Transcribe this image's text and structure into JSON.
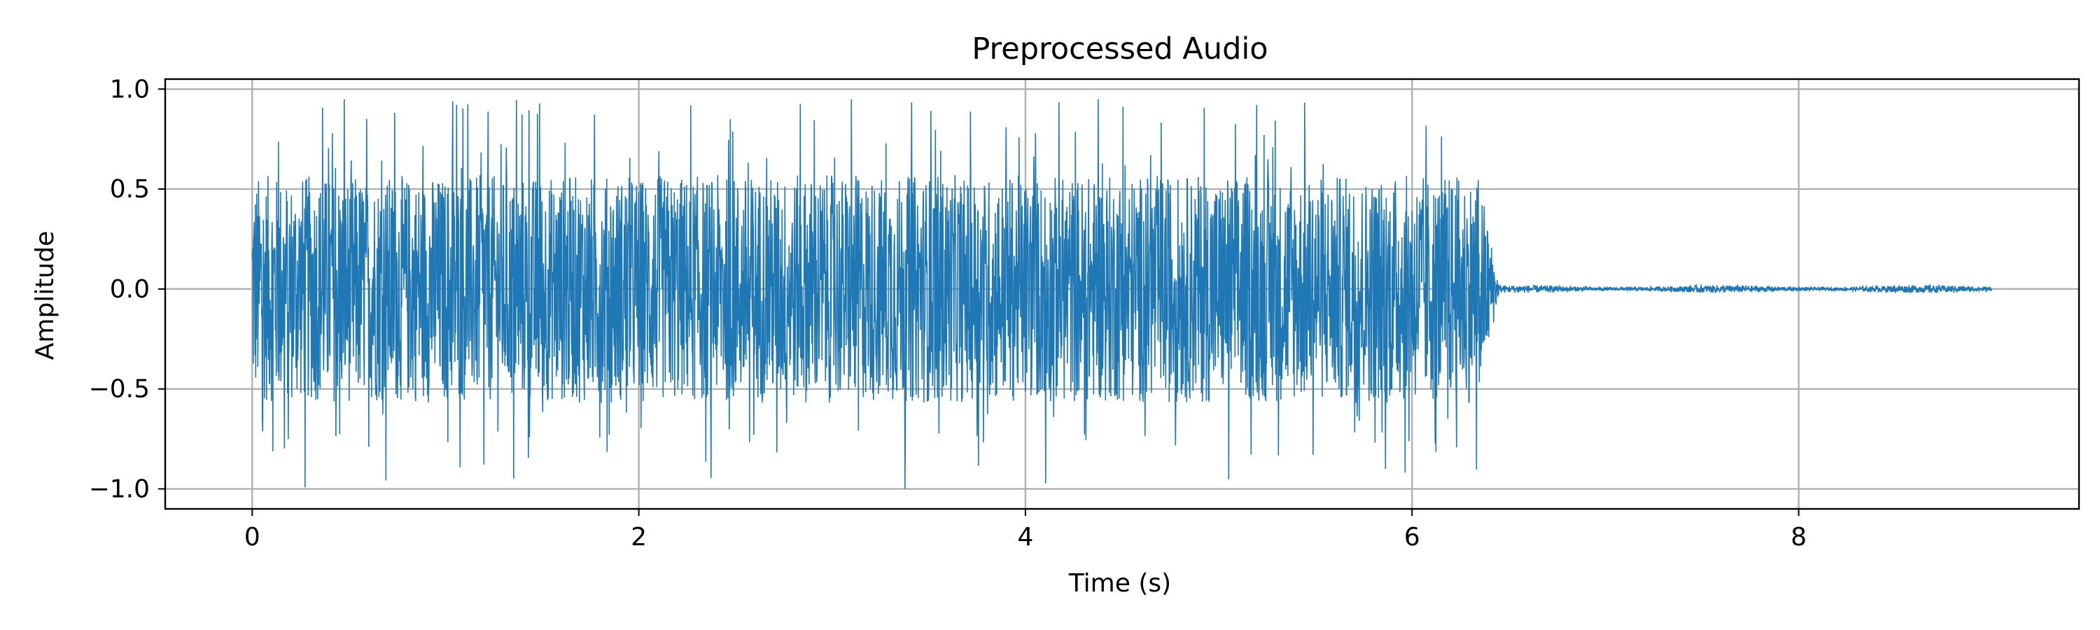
{
  "chart_data": {
    "type": "line",
    "title": "Preprocessed Audio",
    "xlabel": "Time (s)",
    "ylabel": "Amplitude",
    "xlim": [
      -0.45,
      9.45
    ],
    "ylim": [
      -1.1,
      1.05
    ],
    "grid": true,
    "legend": "none",
    "x_ticks": [
      0,
      2,
      4,
      6,
      8
    ],
    "x_tick_labels": [
      "0",
      "2",
      "4",
      "6",
      "8"
    ],
    "y_ticks": [
      1.0,
      0.5,
      0.0,
      -0.5,
      -1.0
    ],
    "y_tick_labels": [
      "1.0",
      "0.5",
      "0.0",
      "−0.5",
      "−1.0"
    ],
    "series": [
      {
        "color": "#1f77b4",
        "description_segments": [
          {
            "x_start": 0.0,
            "x_end": 6.35,
            "typical_peak": 0.6,
            "max_peak": 0.95,
            "min_peak": -1.0
          },
          {
            "x_start": 6.35,
            "x_end": 6.45,
            "typical_peak": 0.2,
            "max_peak": 0.2,
            "min_peak": -0.2
          },
          {
            "x_start": 6.45,
            "x_end": 9.0,
            "typical_peak": 0.02,
            "max_peak": 0.03,
            "min_peak": -0.03
          }
        ]
      }
    ]
  }
}
